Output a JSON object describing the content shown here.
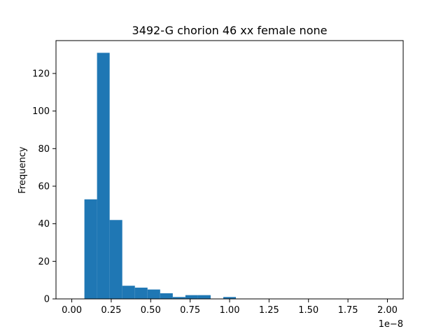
{
  "chart_data": {
    "type": "bar",
    "title": "3492-G chorion 46 xx female none",
    "xlabel": "",
    "ylabel": "Frequency",
    "x_offset_label": "1e−8",
    "xlim": [
      -0.1,
      2.1
    ],
    "ylim": [
      0,
      137.5
    ],
    "x_ticks": [
      0.0,
      0.25,
      0.5,
      0.75,
      1.0,
      1.25,
      1.5,
      1.75,
      2.0
    ],
    "x_tick_labels": [
      "0.00",
      "0.25",
      "0.50",
      "0.75",
      "1.00",
      "1.25",
      "1.50",
      "1.75",
      "2.00"
    ],
    "y_ticks": [
      0,
      20,
      40,
      60,
      80,
      100,
      120
    ],
    "y_tick_labels": [
      "0",
      "20",
      "40",
      "60",
      "80",
      "100",
      "120"
    ],
    "bins": [
      {
        "x0": 0.08,
        "x1": 0.16,
        "count": 53
      },
      {
        "x0": 0.16,
        "x1": 0.24,
        "count": 131
      },
      {
        "x0": 0.24,
        "x1": 0.32,
        "count": 42
      },
      {
        "x0": 0.32,
        "x1": 0.4,
        "count": 7
      },
      {
        "x0": 0.4,
        "x1": 0.48,
        "count": 6
      },
      {
        "x0": 0.48,
        "x1": 0.56,
        "count": 5
      },
      {
        "x0": 0.56,
        "x1": 0.64,
        "count": 3
      },
      {
        "x0": 0.64,
        "x1": 0.72,
        "count": 1
      },
      {
        "x0": 0.72,
        "x1": 0.8,
        "count": 2
      },
      {
        "x0": 0.8,
        "x1": 0.88,
        "count": 2
      },
      {
        "x0": 0.96,
        "x1": 1.04,
        "count": 1
      }
    ],
    "bar_color": "#1f77b4",
    "grid": false,
    "legend": "none"
  }
}
